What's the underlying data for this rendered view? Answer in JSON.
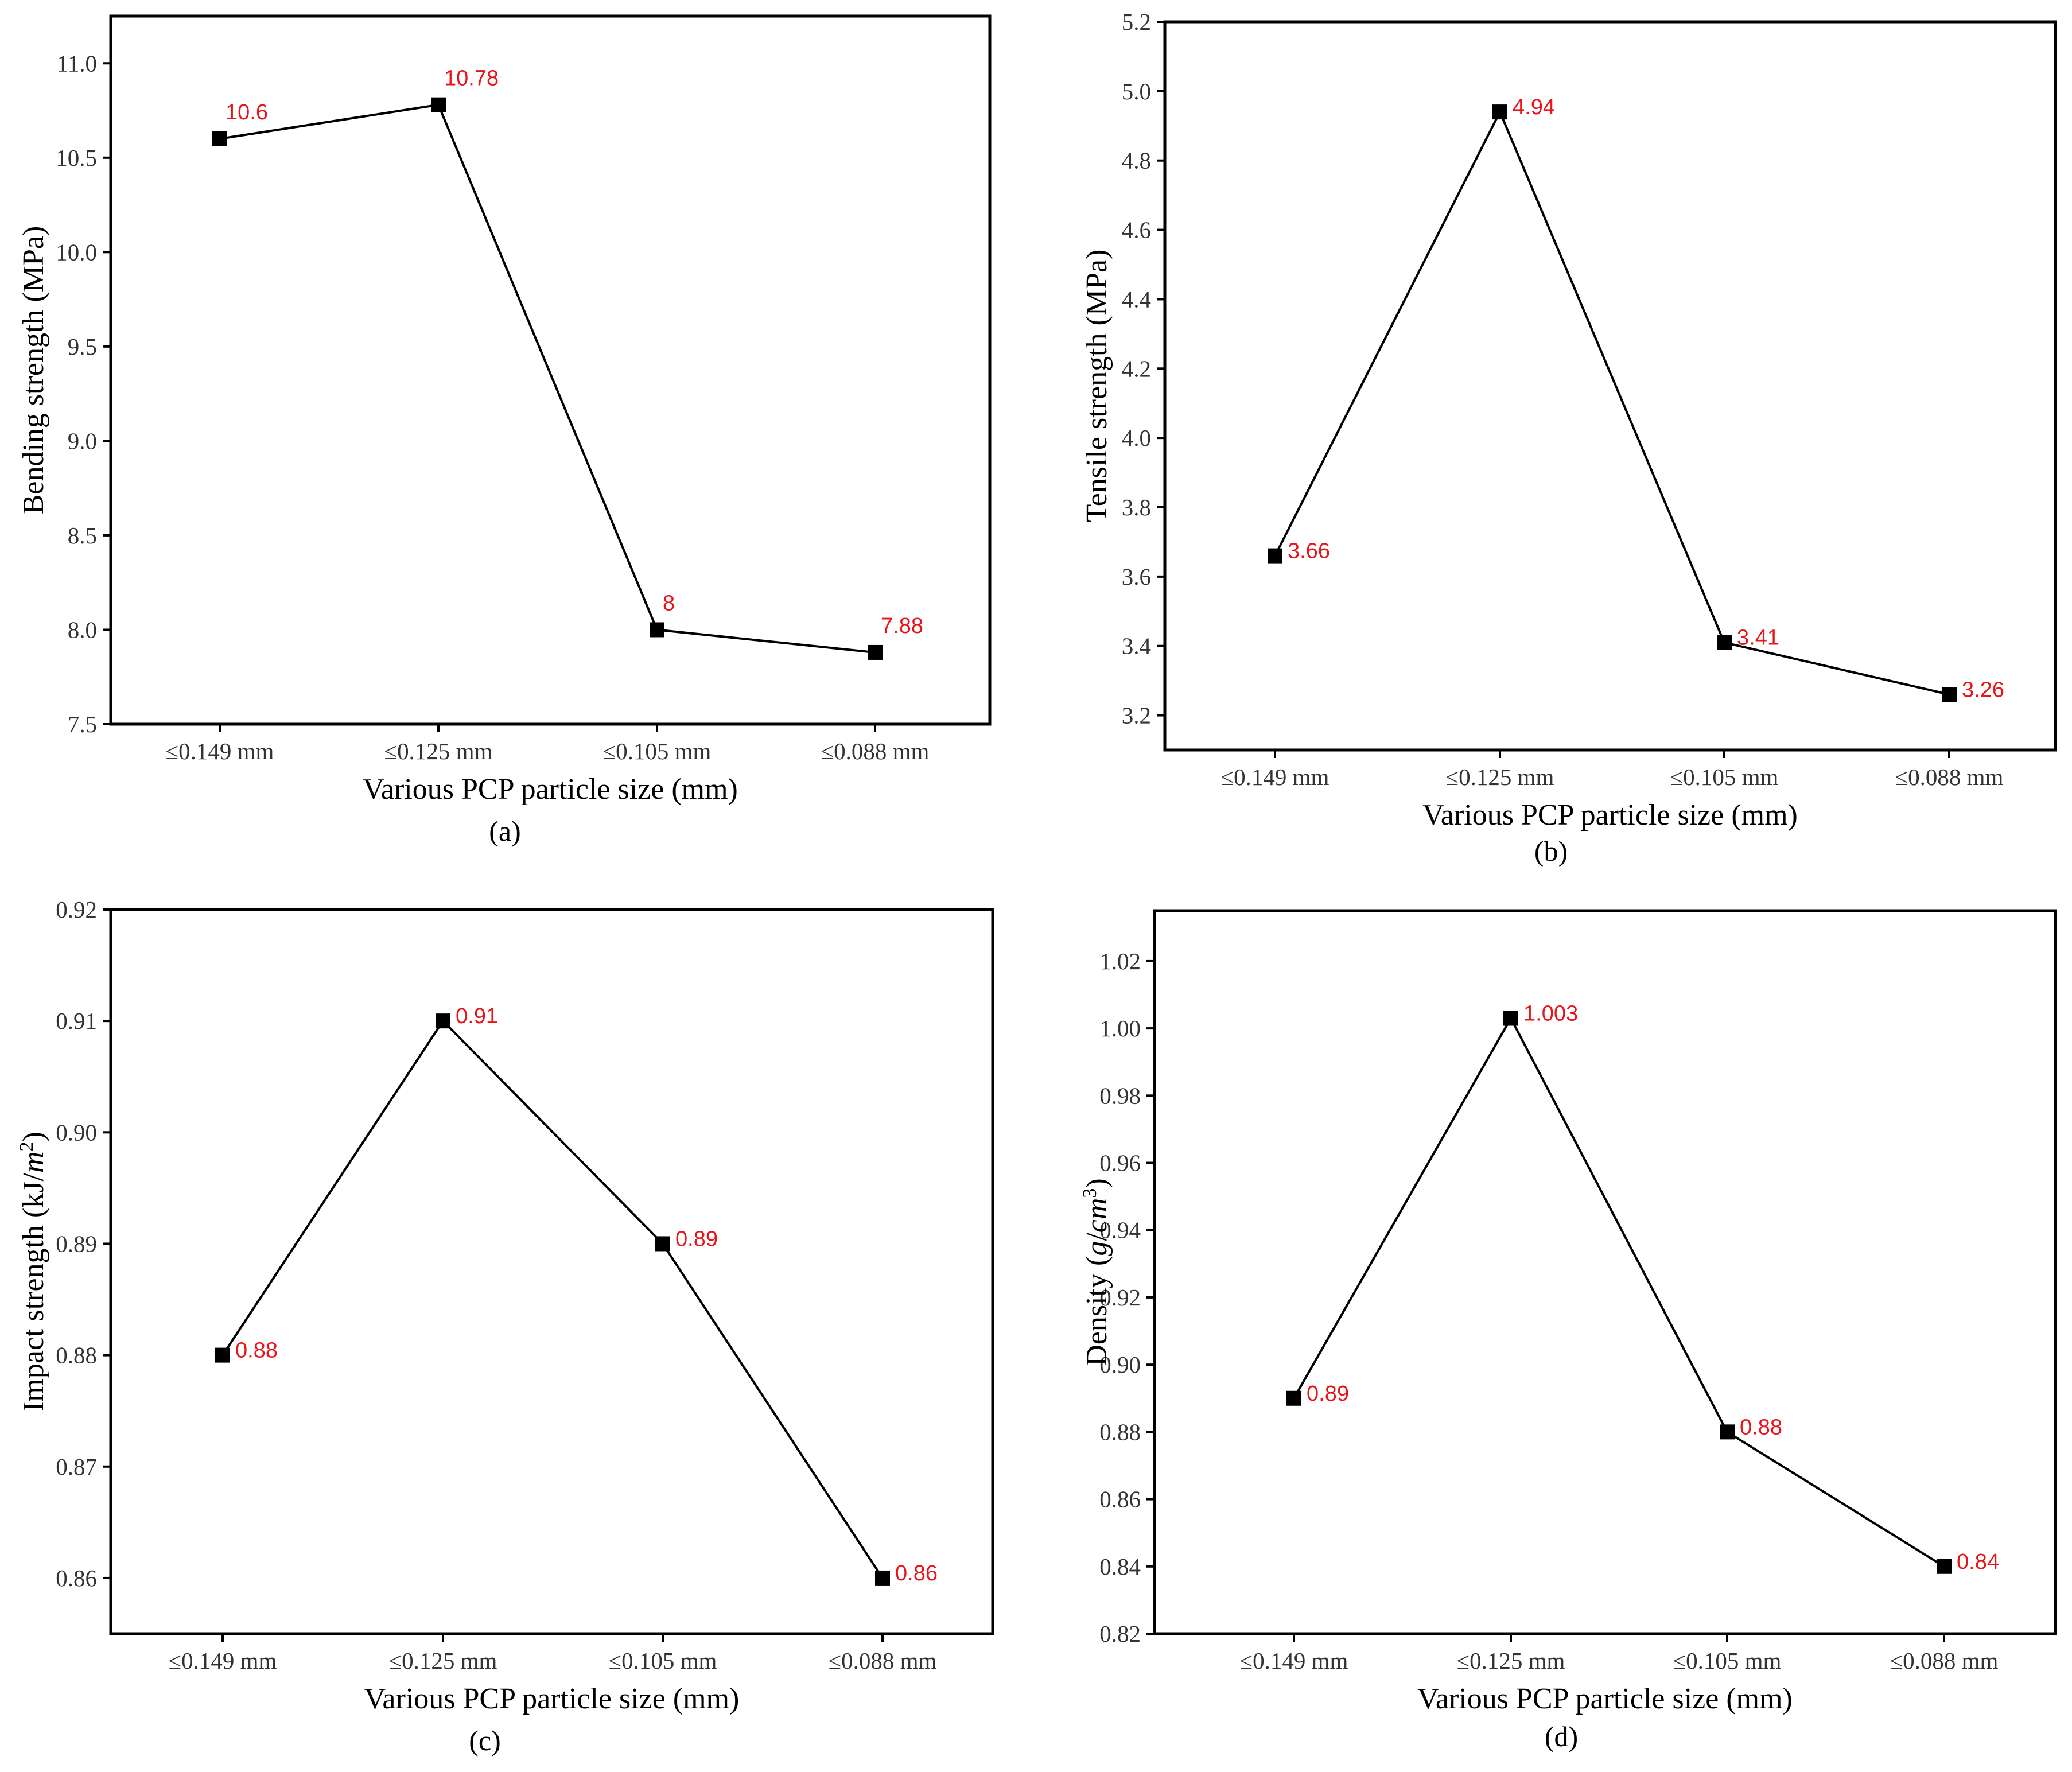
{
  "colors": {
    "axis": "#000000",
    "line": "#000000",
    "marker": "#000000",
    "data_label": "#e8141a",
    "tick_label": "#333333",
    "background": "#ffffff"
  },
  "chart_data": [
    {
      "type": "line",
      "panel": "(a)",
      "categories": [
        "≤0.149 mm",
        "≤0.125 mm",
        "≤0.105 mm",
        "≤0.088 mm"
      ],
      "values": [
        10.6,
        10.78,
        8,
        7.88
      ],
      "value_labels": [
        "10.6",
        "10.78",
        "8",
        "7.88"
      ],
      "xlabel": "Various PCP particle size (mm)",
      "ylabel": "Bending strength (MPa)",
      "ylabel_parts": [
        {
          "t": "Bending strength (MPa)"
        }
      ],
      "ylim": [
        7.5,
        11.25
      ],
      "yticks": [
        7.5,
        8.0,
        8.5,
        9.0,
        9.5,
        10.0,
        10.5,
        11.0
      ],
      "ytick_labels": [
        "7.5",
        "8.0",
        "8.5",
        "9.0",
        "9.5",
        "10.0",
        "10.5",
        "11.0"
      ],
      "marker": "square",
      "grid": false
    },
    {
      "type": "line",
      "panel": "(b)",
      "categories": [
        "≤0.149 mm",
        "≤0.125 mm",
        "≤0.105 mm",
        "≤0.088 mm"
      ],
      "values": [
        3.66,
        4.94,
        3.41,
        3.26
      ],
      "value_labels": [
        "3.66",
        "4.94",
        "3.41",
        "3.26"
      ],
      "xlabel": "Various PCP particle size (mm)",
      "ylabel": "Tensile strength (MPa)",
      "ylabel_parts": [
        {
          "t": "Tensile strength (MPa)"
        }
      ],
      "ylim": [
        3.1,
        5.2
      ],
      "yticks": [
        3.2,
        3.4,
        3.6,
        3.8,
        4.0,
        4.2,
        4.4,
        4.6,
        4.8,
        5.0,
        5.2
      ],
      "ytick_labels": [
        "3.2",
        "3.4",
        "3.6",
        "3.8",
        "4.0",
        "4.2",
        "4.4",
        "4.6",
        "4.8",
        "5.0",
        "5.2"
      ],
      "marker": "square",
      "grid": false
    },
    {
      "type": "line",
      "panel": "(c)",
      "categories": [
        "≤0.149 mm",
        "≤0.125 mm",
        "≤0.105 mm",
        "≤0.088 mm"
      ],
      "values": [
        0.88,
        0.91,
        0.89,
        0.86
      ],
      "value_labels": [
        "0.88",
        "0.91",
        "0.89",
        "0.86"
      ],
      "xlabel": "Various PCP particle size (mm)",
      "ylabel": "Impact strength (kJ/m2)",
      "ylabel_parts": [
        {
          "t": "Impact strength (kJ/"
        },
        {
          "t": "m",
          "i": true
        },
        {
          "t": "2",
          "sup": true
        },
        {
          "t": ")"
        }
      ],
      "ylim": [
        0.855,
        0.92
      ],
      "yticks": [
        0.86,
        0.87,
        0.88,
        0.89,
        0.9,
        0.91,
        0.92
      ],
      "ytick_labels": [
        "0.86",
        "0.87",
        "0.88",
        "0.89",
        "0.90",
        "0.91",
        "0.92"
      ],
      "marker": "square",
      "grid": false
    },
    {
      "type": "line",
      "panel": "(d)",
      "categories": [
        "≤0.149 mm",
        "≤0.125 mm",
        "≤0.105 mm",
        "≤0.088 mm"
      ],
      "values": [
        0.89,
        1.003,
        0.88,
        0.84
      ],
      "value_labels": [
        "0.89",
        "1.003",
        "0.88",
        "0.84"
      ],
      "xlabel": "Various PCP particle size (mm)",
      "ylabel": "Density (g/cm3)",
      "ylabel_parts": [
        {
          "t": "Density ("
        },
        {
          "t": "g",
          "i": true
        },
        {
          "t": "/"
        },
        {
          "t": "cm",
          "i": true
        },
        {
          "t": "3",
          "sup": true
        },
        {
          "t": ")"
        }
      ],
      "ylim": [
        0.82,
        1.035
      ],
      "yticks": [
        0.82,
        0.84,
        0.86,
        0.88,
        0.9,
        0.92,
        0.94,
        0.96,
        0.98,
        1.0,
        1.02
      ],
      "ytick_labels": [
        "0.82",
        "0.84",
        "0.86",
        "0.88",
        "0.90",
        "0.92",
        "0.94",
        "0.96",
        "0.98",
        "1.00",
        "1.02"
      ],
      "marker": "square",
      "grid": false
    }
  ]
}
